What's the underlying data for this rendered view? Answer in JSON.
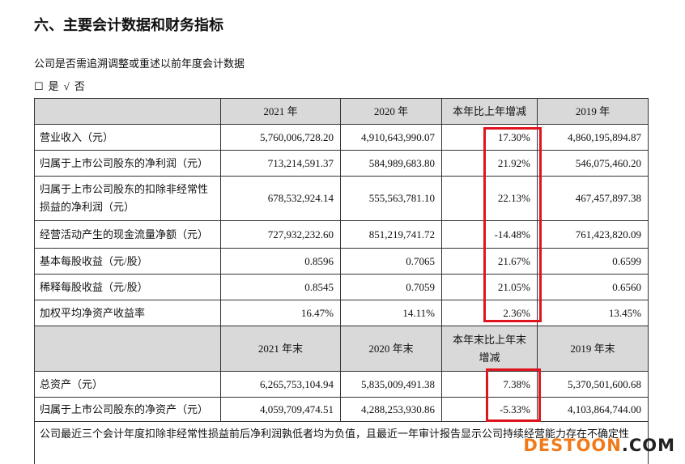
{
  "heading": "六、主要会计数据和财务指标",
  "question": "公司是否需追溯调整或重述以前年度会计数据",
  "options": [
    {
      "mark": "☐",
      "label": "是"
    },
    {
      "mark": "√",
      "label": "否"
    }
  ],
  "table": {
    "header": [
      "2021 年",
      "2020 年",
      "本年比上年增减",
      "2019 年"
    ],
    "rows": [
      {
        "label": "营业收入（元）",
        "values": [
          "5,760,006,728.20",
          "4,910,643,990.07",
          "17.30%",
          "4,860,195,894.87"
        ]
      },
      {
        "label": "归属于上市公司股东的净利润（元）",
        "values": [
          "713,214,591.37",
          "584,989,683.80",
          "21.92%",
          "546,075,460.20"
        ]
      },
      {
        "label": "归属于上市公司股东的扣除非经常性损益的净利润（元）",
        "values": [
          "678,532,924.14",
          "555,563,781.10",
          "22.13%",
          "467,457,897.38"
        ]
      },
      {
        "label": "经营活动产生的现金流量净额（元）",
        "values": [
          "727,932,232.60",
          "851,219,741.72",
          "-14.48%",
          "761,423,820.09"
        ]
      },
      {
        "label": "基本每股收益（元/股）",
        "values": [
          "0.8596",
          "0.7065",
          "21.67%",
          "0.6599"
        ]
      },
      {
        "label": "稀释每股收益（元/股）",
        "values": [
          "0.8545",
          "0.7059",
          "21.05%",
          "0.6560"
        ]
      },
      {
        "label": "加权平均净资产收益率",
        "values": [
          "16.47%",
          "14.11%",
          "2.36%",
          "13.45%"
        ]
      }
    ],
    "header2": [
      "2021 年末",
      "2020 年末",
      "本年末比上年末增减",
      "2019 年末"
    ],
    "rows2": [
      {
        "label": "总资产（元）",
        "values": [
          "6,265,753,104.94",
          "5,835,009,491.38",
          "7.38%",
          "5,370,501,600.68"
        ]
      },
      {
        "label": "归属于上市公司股东的净资产（元）",
        "values": [
          "4,059,709,474.51",
          "4,288,253,930.86",
          "-5.33%",
          "4,103,864,744.00"
        ]
      }
    ],
    "footnote": "公司最近三个会计年度扣除非经常性损益前后净利润孰低者均为负值，且最近一年审计报告显示公司持续经营能力存在不确定性"
  },
  "watermark": {
    "brand": "DESTOON",
    "suffix": ".COM"
  }
}
